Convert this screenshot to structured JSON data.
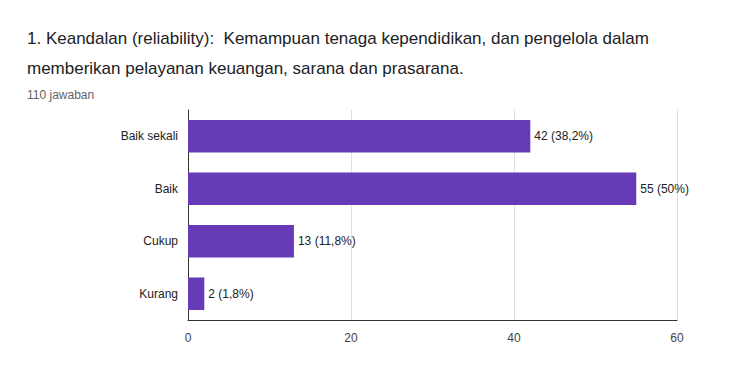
{
  "chart_data": {
    "type": "bar",
    "title": "1. Keandalan (reliability):  Kemampuan tenaga kependidikan, dan pengelola dalam memberikan pelayanan keuangan, sarana dan prasarana.",
    "subtitle": "110 jawaban",
    "orientation": "horizontal",
    "categories": [
      "Baik sekali",
      "Baik",
      "Cukup",
      "Kurang"
    ],
    "values": [
      42,
      55,
      13,
      2
    ],
    "value_labels": [
      "42 (38,2%)",
      "55 (50%)",
      "13 (11,8%)",
      "2 (1,8%)"
    ],
    "data_labels": true,
    "color": "#673ab7",
    "xlim": [
      0,
      60
    ],
    "xticks": [
      0,
      20,
      40,
      60
    ],
    "grid": true
  }
}
